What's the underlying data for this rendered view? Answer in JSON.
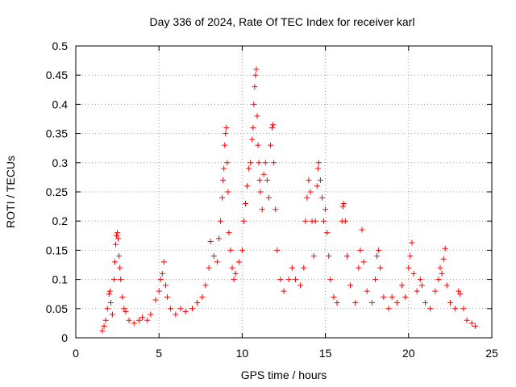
{
  "chart_data": {
    "type": "scatter",
    "title": "Day 336 of 2024, Rate Of TEC Index for receiver karl",
    "xlabel": "GPS time / hours",
    "ylabel": "ROTI / TECUs",
    "xlim": [
      0,
      25
    ],
    "ylim": [
      0,
      0.5
    ],
    "xticks": [
      "0",
      "5",
      "10",
      "15",
      "20",
      "25"
    ],
    "yticks": [
      "0",
      "0.05",
      "0.1",
      "0.15",
      "0.2",
      "0.25",
      "0.3",
      "0.35",
      "0.4",
      "0.45",
      "0.5"
    ],
    "grid": true,
    "marker": "plus",
    "color": "#ff0000",
    "series": [
      {
        "name": "",
        "points": [
          [
            1.6,
            0.012
          ],
          [
            1.7,
            0.02
          ],
          [
            1.8,
            0.03
          ],
          [
            1.9,
            0.05
          ],
          [
            2.0,
            0.075
          ],
          [
            2.05,
            0.08
          ],
          [
            2.1,
            0.06
          ],
          [
            2.2,
            0.04
          ],
          [
            2.3,
            0.1
          ],
          [
            2.35,
            0.13
          ],
          [
            2.4,
            0.16
          ],
          [
            2.45,
            0.175
          ],
          [
            2.5,
            0.18
          ],
          [
            2.55,
            0.17
          ],
          [
            2.6,
            0.14
          ],
          [
            2.65,
            0.12
          ],
          [
            2.7,
            0.1
          ],
          [
            2.8,
            0.07
          ],
          [
            2.9,
            0.05
          ],
          [
            3.0,
            0.045
          ],
          [
            3.2,
            0.03
          ],
          [
            3.5,
            0.025
          ],
          [
            3.8,
            0.03
          ],
          [
            4.0,
            0.035
          ],
          [
            4.3,
            0.03
          ],
          [
            4.5,
            0.04
          ],
          [
            4.8,
            0.065
          ],
          [
            5.0,
            0.08
          ],
          [
            5.1,
            0.1
          ],
          [
            5.2,
            0.11
          ],
          [
            5.3,
            0.13
          ],
          [
            5.4,
            0.09
          ],
          [
            5.5,
            0.07
          ],
          [
            5.7,
            0.05
          ],
          [
            6.0,
            0.04
          ],
          [
            6.3,
            0.05
          ],
          [
            6.6,
            0.045
          ],
          [
            7.0,
            0.05
          ],
          [
            7.3,
            0.06
          ],
          [
            7.6,
            0.07
          ],
          [
            7.8,
            0.09
          ],
          [
            8.0,
            0.12
          ],
          [
            8.1,
            0.165
          ],
          [
            8.3,
            0.14
          ],
          [
            8.5,
            0.13
          ],
          [
            8.6,
            0.17
          ],
          [
            8.7,
            0.2
          ],
          [
            8.8,
            0.24
          ],
          [
            8.85,
            0.27
          ],
          [
            8.9,
            0.29
          ],
          [
            8.95,
            0.33
          ],
          [
            9.0,
            0.35
          ],
          [
            9.05,
            0.36
          ],
          [
            9.1,
            0.3
          ],
          [
            9.15,
            0.25
          ],
          [
            9.2,
            0.18
          ],
          [
            9.3,
            0.15
          ],
          [
            9.4,
            0.12
          ],
          [
            9.5,
            0.1
          ],
          [
            9.6,
            0.11
          ],
          [
            9.8,
            0.13
          ],
          [
            10.0,
            0.15
          ],
          [
            10.1,
            0.2
          ],
          [
            10.2,
            0.23
          ],
          [
            10.3,
            0.26
          ],
          [
            10.4,
            0.29
          ],
          [
            10.5,
            0.3
          ],
          [
            10.6,
            0.34
          ],
          [
            10.65,
            0.36
          ],
          [
            10.7,
            0.4
          ],
          [
            10.75,
            0.43
          ],
          [
            10.8,
            0.45
          ],
          [
            10.85,
            0.46
          ],
          [
            10.9,
            0.38
          ],
          [
            10.95,
            0.33
          ],
          [
            11.0,
            0.3
          ],
          [
            11.05,
            0.27
          ],
          [
            11.1,
            0.25
          ],
          [
            11.2,
            0.22
          ],
          [
            11.3,
            0.28
          ],
          [
            11.4,
            0.3
          ],
          [
            11.5,
            0.27
          ],
          [
            11.6,
            0.24
          ],
          [
            11.7,
            0.33
          ],
          [
            11.8,
            0.36
          ],
          [
            11.85,
            0.365
          ],
          [
            11.9,
            0.3
          ],
          [
            12.0,
            0.22
          ],
          [
            12.1,
            0.15
          ],
          [
            12.3,
            0.1
          ],
          [
            12.5,
            0.08
          ],
          [
            12.8,
            0.1
          ],
          [
            13.0,
            0.12
          ],
          [
            13.2,
            0.1
          ],
          [
            13.5,
            0.09
          ],
          [
            13.7,
            0.12
          ],
          [
            13.8,
            0.2
          ],
          [
            13.9,
            0.24
          ],
          [
            14.0,
            0.27
          ],
          [
            14.1,
            0.25
          ],
          [
            14.2,
            0.2
          ],
          [
            14.3,
            0.14
          ],
          [
            14.4,
            0.2
          ],
          [
            14.5,
            0.26
          ],
          [
            14.55,
            0.29
          ],
          [
            14.6,
            0.3
          ],
          [
            14.7,
            0.27
          ],
          [
            14.8,
            0.24
          ],
          [
            14.9,
            0.2
          ],
          [
            15.0,
            0.22
          ],
          [
            15.1,
            0.18
          ],
          [
            15.2,
            0.14
          ],
          [
            15.3,
            0.1
          ],
          [
            15.5,
            0.07
          ],
          [
            15.7,
            0.06
          ],
          [
            16.0,
            0.2
          ],
          [
            16.05,
            0.225
          ],
          [
            16.1,
            0.23
          ],
          [
            16.2,
            0.2
          ],
          [
            16.3,
            0.14
          ],
          [
            16.5,
            0.09
          ],
          [
            16.8,
            0.06
          ],
          [
            17.0,
            0.12
          ],
          [
            17.1,
            0.15
          ],
          [
            17.2,
            0.185
          ],
          [
            17.3,
            0.13
          ],
          [
            17.5,
            0.08
          ],
          [
            17.8,
            0.06
          ],
          [
            18.0,
            0.1
          ],
          [
            18.1,
            0.14
          ],
          [
            18.2,
            0.15
          ],
          [
            18.3,
            0.12
          ],
          [
            18.5,
            0.07
          ],
          [
            18.8,
            0.05
          ],
          [
            19.0,
            0.07
          ],
          [
            19.3,
            0.06
          ],
          [
            19.6,
            0.09
          ],
          [
            19.8,
            0.07
          ],
          [
            20.0,
            0.12
          ],
          [
            20.1,
            0.14
          ],
          [
            20.2,
            0.163
          ],
          [
            20.3,
            0.11
          ],
          [
            20.5,
            0.08
          ],
          [
            20.7,
            0.1
          ],
          [
            20.8,
            0.09
          ],
          [
            21.0,
            0.06
          ],
          [
            21.3,
            0.05
          ],
          [
            21.6,
            0.08
          ],
          [
            21.8,
            0.1
          ],
          [
            21.9,
            0.12
          ],
          [
            22.0,
            0.11
          ],
          [
            22.1,
            0.135
          ],
          [
            22.2,
            0.153
          ],
          [
            22.3,
            0.09
          ],
          [
            22.5,
            0.06
          ],
          [
            22.8,
            0.05
          ],
          [
            23.0,
            0.08
          ],
          [
            23.1,
            0.075
          ],
          [
            23.3,
            0.05
          ],
          [
            23.5,
            0.03
          ],
          [
            23.8,
            0.025
          ],
          [
            24.0,
            0.02
          ]
        ]
      }
    ]
  }
}
